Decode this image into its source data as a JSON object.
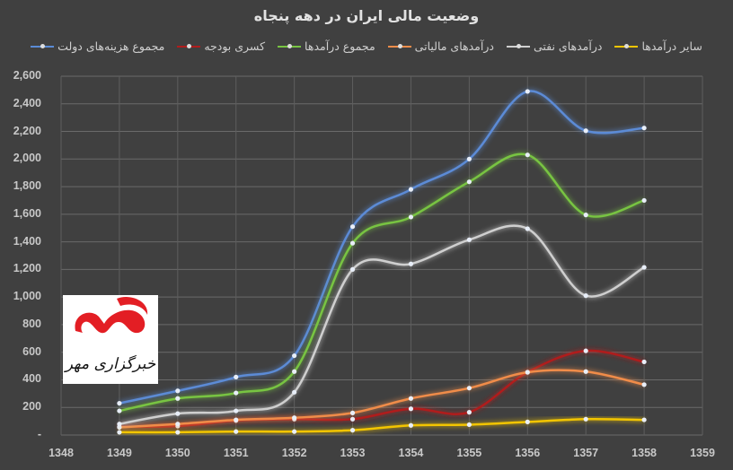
{
  "chart_data": {
    "type": "line",
    "title": "وضعیت مالی ایران در دهه پنجاه",
    "xlabel": "",
    "ylabel": "",
    "x_ticks": [
      "1348",
      "1349",
      "1350",
      "1351",
      "1352",
      "1353",
      "1354",
      "1355",
      "1356",
      "1357",
      "1358",
      "1359"
    ],
    "y_ticks": [
      "2,600",
      "2,400",
      "2,200",
      "2,000",
      "1,800",
      "1,600",
      "1,400",
      "1,200",
      "1,000",
      "800",
      "600",
      "400",
      "200",
      "-"
    ],
    "ylim": [
      0,
      2600
    ],
    "xlim": [
      1348,
      1359
    ],
    "grid": true,
    "legend_position": "top",
    "x": [
      1349,
      1350,
      1351,
      1352,
      1353,
      1354,
      1355,
      1356,
      1357,
      1358
    ],
    "series": [
      {
        "name": "مجموع هزینه‌های دولت",
        "color": "#5b8bd6",
        "values": [
          230,
          320,
          420,
          575,
          1510,
          1780,
          2000,
          2490,
          2205,
          2225
        ]
      },
      {
        "name": "کسری بودجه",
        "color": "#b01c1c",
        "values": [
          60,
          65,
          105,
          115,
          115,
          190,
          165,
          455,
          610,
          530
        ]
      },
      {
        "name": "مجموع درآمدها",
        "color": "#78c442",
        "values": [
          175,
          265,
          305,
          460,
          1390,
          1580,
          1835,
          2030,
          1595,
          1700
        ]
      },
      {
        "name": "درآمدهای مالیاتی",
        "color": "#f08c4a",
        "values": [
          55,
          80,
          110,
          125,
          160,
          265,
          340,
          455,
          460,
          365
        ]
      },
      {
        "name": "درآمدهای نفتی",
        "color": "#cfcfcf",
        "values": [
          80,
          155,
          175,
          310,
          1200,
          1240,
          1415,
          1495,
          1010,
          1215
        ]
      },
      {
        "name": "سایر درآمدها",
        "color": "#f2c500",
        "values": [
          20,
          20,
          25,
          25,
          35,
          70,
          75,
          95,
          115,
          110
        ]
      }
    ]
  },
  "legend_order": [
    5,
    4,
    3,
    2,
    1,
    0
  ],
  "logo": {
    "text": "خبرگزاری مهر",
    "color": "#e31e24"
  }
}
